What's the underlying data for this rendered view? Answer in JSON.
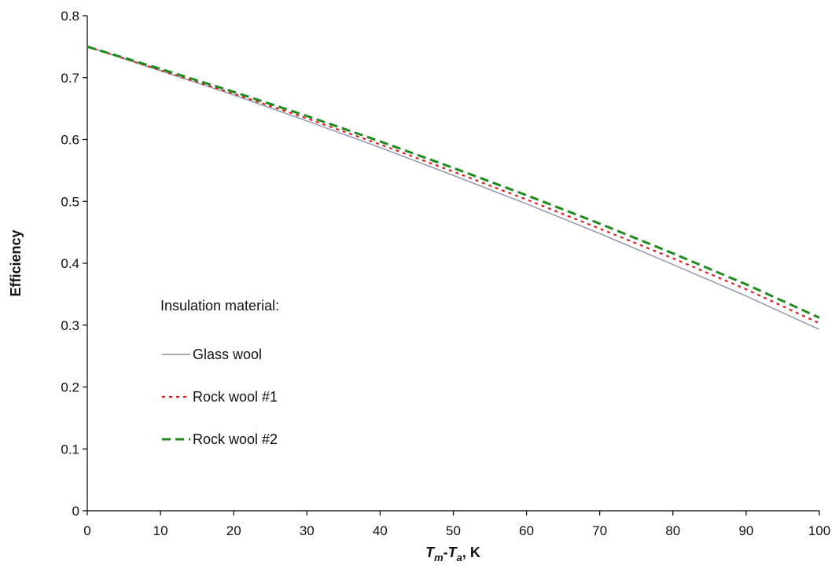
{
  "chart_data": {
    "type": "line",
    "title": "",
    "xlabel": {
      "main": "T",
      "sub1": "m",
      "dash": "-",
      "main2": "T",
      "sub2": "a",
      "unit": ", K"
    },
    "ylabel": "Efficiency",
    "xlim": [
      0,
      100
    ],
    "ylim": [
      0,
      0.8
    ],
    "x_ticks": [
      "0",
      "10",
      "20",
      "30",
      "40",
      "50",
      "60",
      "70",
      "80",
      "90",
      "100"
    ],
    "y_ticks": [
      "0",
      "0.1",
      "0.2",
      "0.3",
      "0.4",
      "0.5",
      "0.6",
      "0.7",
      "0.8"
    ],
    "grid": false,
    "legend": {
      "title": "Insulation material:",
      "placement": "lower-left"
    },
    "x": [
      0,
      10,
      20,
      30,
      40,
      50,
      60,
      70,
      80,
      90,
      100
    ],
    "series": [
      {
        "name": "Glass wool",
        "color": "#8a93a8",
        "style": "solid",
        "values": [
          0.75,
          0.711,
          0.672,
          0.63,
          0.587,
          0.542,
          0.496,
          0.448,
          0.398,
          0.347,
          0.293
        ]
      },
      {
        "name": "Rock wool #1",
        "color": "#e02020",
        "style": "dotted",
        "values": [
          0.75,
          0.712,
          0.674,
          0.634,
          0.592,
          0.548,
          0.503,
          0.456,
          0.408,
          0.358,
          0.303
        ]
      },
      {
        "name": "Rock wool #2",
        "color": "#1e8a1e",
        "style": "dashed",
        "values": [
          0.75,
          0.714,
          0.677,
          0.638,
          0.597,
          0.554,
          0.51,
          0.464,
          0.416,
          0.366,
          0.312
        ]
      }
    ]
  }
}
